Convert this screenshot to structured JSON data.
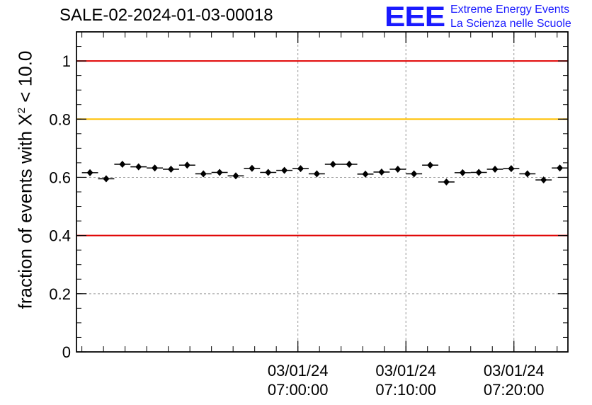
{
  "header": {
    "title": "SALE-02-2024-01-03-00018",
    "logo_text": "EEE",
    "logo_line1": "Extreme Energy Events",
    "logo_line2": "La Scienza nelle Scuole"
  },
  "colors": {
    "red_line": "#e00000",
    "yellow_line": "#ffc000",
    "logo_blue": "#1a1aff",
    "grid": "#999999"
  },
  "chart_data": {
    "type": "scatter",
    "title": "SALE-02-2024-01-03-00018",
    "ylabel_prefix": "fraction of events with",
    "ylabel_symbol": "X",
    "ylabel_exp": "2",
    "ylabel_suffix": "< 10.0",
    "xlabel": "",
    "x_unit": "minutes (time axis, ticks labelled by date/time)",
    "xlim": [
      -20.5,
      25.0
    ],
    "ylim": [
      0,
      1.1
    ],
    "x_ticks": [
      {
        "x": 0,
        "date": "03/01/24",
        "time": "07:00:00"
      },
      {
        "x": 10,
        "date": "03/01/24",
        "time": "07:10:00"
      },
      {
        "x": 20,
        "date": "03/01/24",
        "time": "07:20:00"
      }
    ],
    "y_ticks": [
      "0",
      "0.2",
      "0.4",
      "0.6",
      "0.8",
      "1"
    ],
    "grid": true,
    "reference_lines": [
      {
        "y": 1.0,
        "color": "red"
      },
      {
        "y": 0.8,
        "color": "yellow"
      },
      {
        "y": 0.4,
        "color": "red"
      }
    ],
    "series": [
      {
        "x": [
          -19.25,
          -17.75,
          -16.25,
          -14.75,
          -13.25,
          -11.75,
          -10.25,
          -8.75,
          -7.25,
          -5.75,
          -4.25,
          -2.75,
          -1.25,
          0.25,
          1.75,
          3.25,
          4.75,
          6.25,
          7.75,
          9.25,
          10.75,
          12.25,
          13.75,
          15.25,
          16.75,
          18.25,
          19.75,
          21.25,
          22.75,
          24.25
        ],
        "y": [
          0.616,
          0.595,
          0.645,
          0.636,
          0.632,
          0.628,
          0.642,
          0.612,
          0.617,
          0.605,
          0.631,
          0.617,
          0.624,
          0.63,
          0.612,
          0.645,
          0.645,
          0.611,
          0.618,
          0.628,
          0.612,
          0.642,
          0.584,
          0.616,
          0.617,
          0.628,
          0.63,
          0.612,
          0.591,
          0.632
        ],
        "xerr": 0.75,
        "yerr": 0.01
      }
    ]
  }
}
